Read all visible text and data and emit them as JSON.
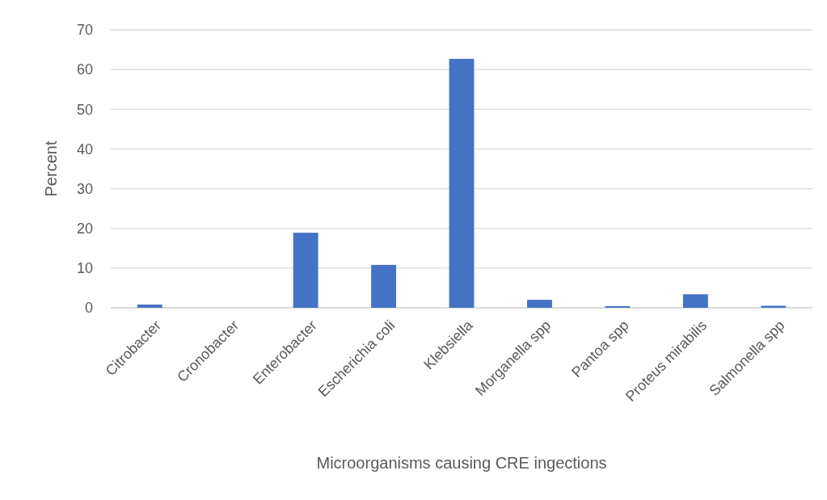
{
  "chart_data": {
    "type": "bar",
    "xlabel": "Microorganisms causing CRE ingections",
    "ylabel": "Percent",
    "categories": [
      "Citrobacter",
      "Cronobacter",
      "Enterobacter",
      "Escherichia coli",
      "Klebsiella",
      "Morganella spp",
      "Pantoa spp",
      "Proteus mirabilis",
      "Salmonella spp"
    ],
    "values": [
      0.8,
      0,
      18.9,
      10.8,
      62.7,
      2,
      0.4,
      3.4,
      0.5
    ],
    "color": "#4472c4",
    "ylim": [
      0,
      70
    ],
    "yticks": [
      0,
      10,
      20,
      30,
      40,
      50,
      60,
      70
    ],
    "grid": "y"
  }
}
